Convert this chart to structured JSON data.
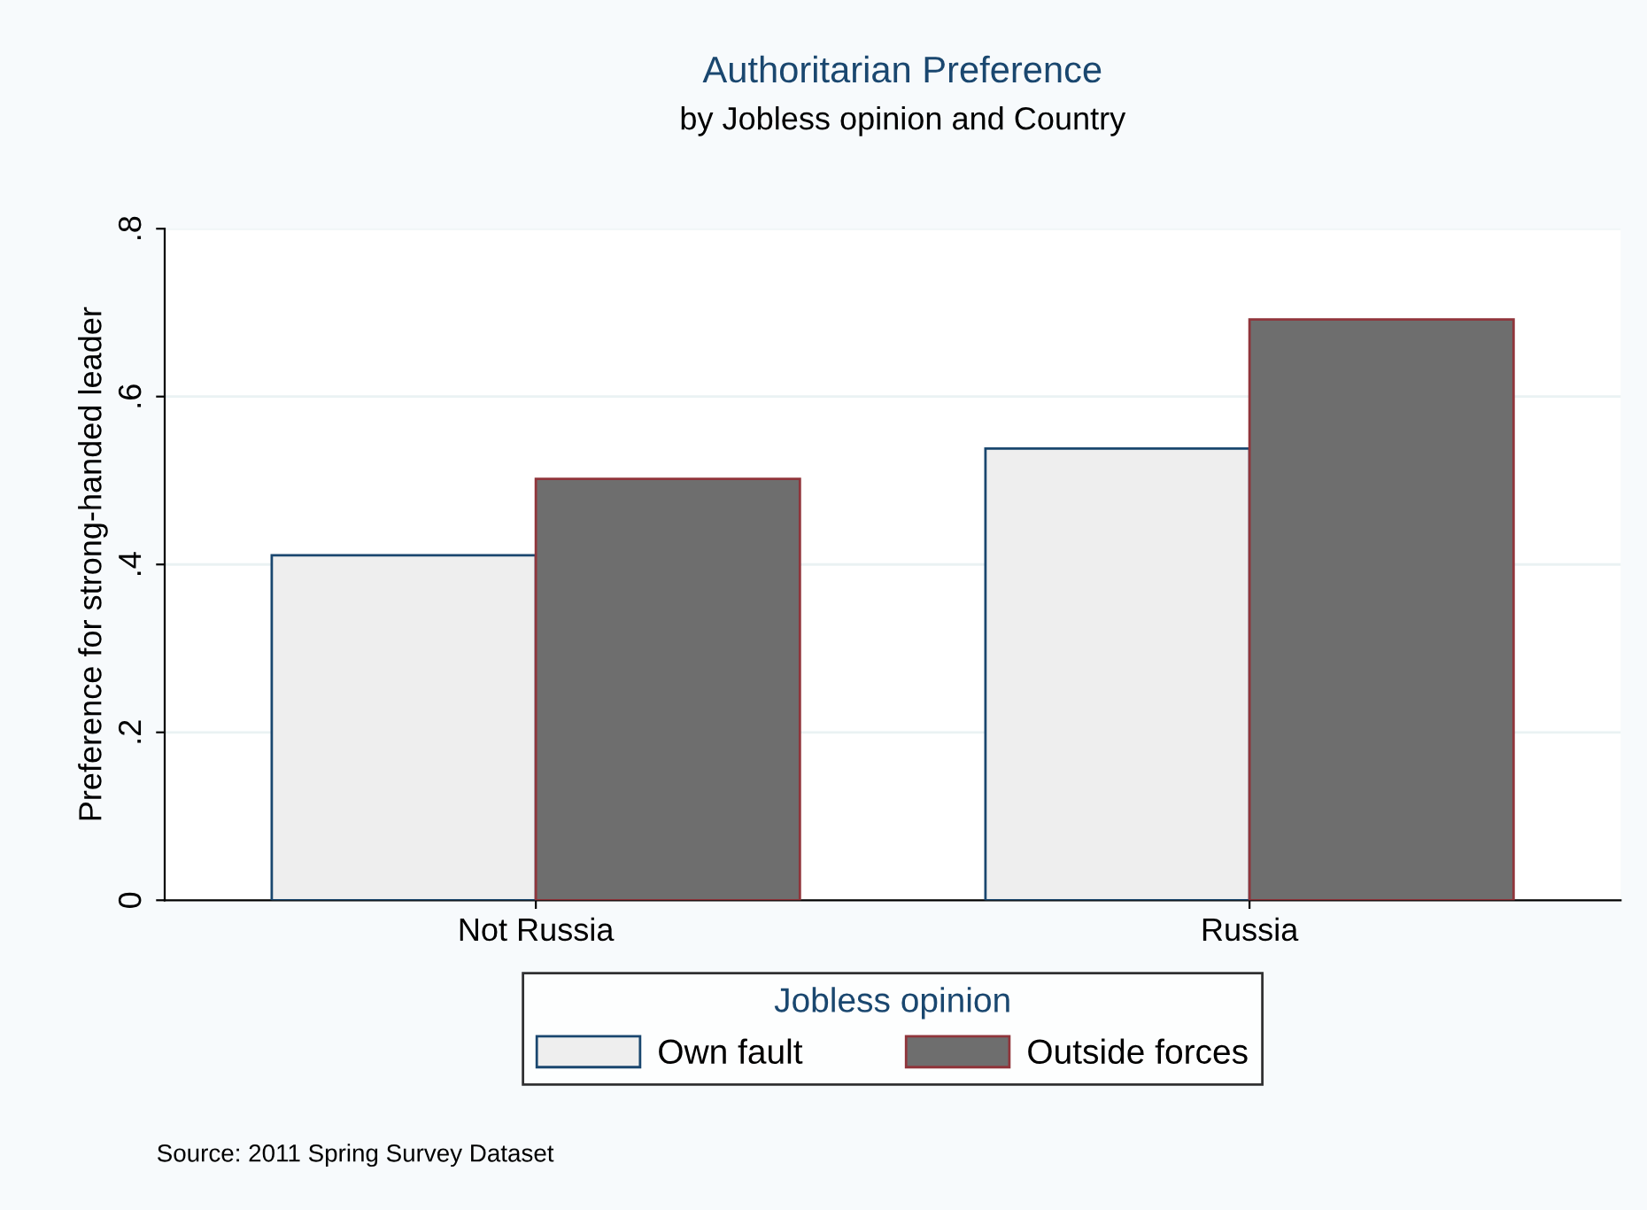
{
  "chart_data": {
    "type": "bar",
    "title": "Authoritarian Preference",
    "subtitle": "by Jobless opinion and Country",
    "ylabel": "Preference for strong-handed leader",
    "legend_title": "Jobless opinion",
    "categories": [
      "Not Russia",
      "Russia"
    ],
    "series": [
      {
        "name": "Own fault",
        "color": "#eeeeee",
        "values": [
          0.411,
          0.538
        ]
      },
      {
        "name": "Outside forces",
        "color": "#6e6e6e",
        "values": [
          0.502,
          0.692
        ]
      }
    ],
    "ylim": [
      0,
      0.8
    ],
    "yticks": [
      {
        "value": 0,
        "label": "0"
      },
      {
        "value": 0.2,
        "label": ".2"
      },
      {
        "value": 0.4,
        "label": ".4"
      },
      {
        "value": 0.6,
        "label": ".6"
      },
      {
        "value": 0.8,
        "label": ".8"
      }
    ],
    "grid": "y",
    "legend": "bottom",
    "annotations": [
      "Source: 2011 Spring Survey Dataset"
    ]
  }
}
